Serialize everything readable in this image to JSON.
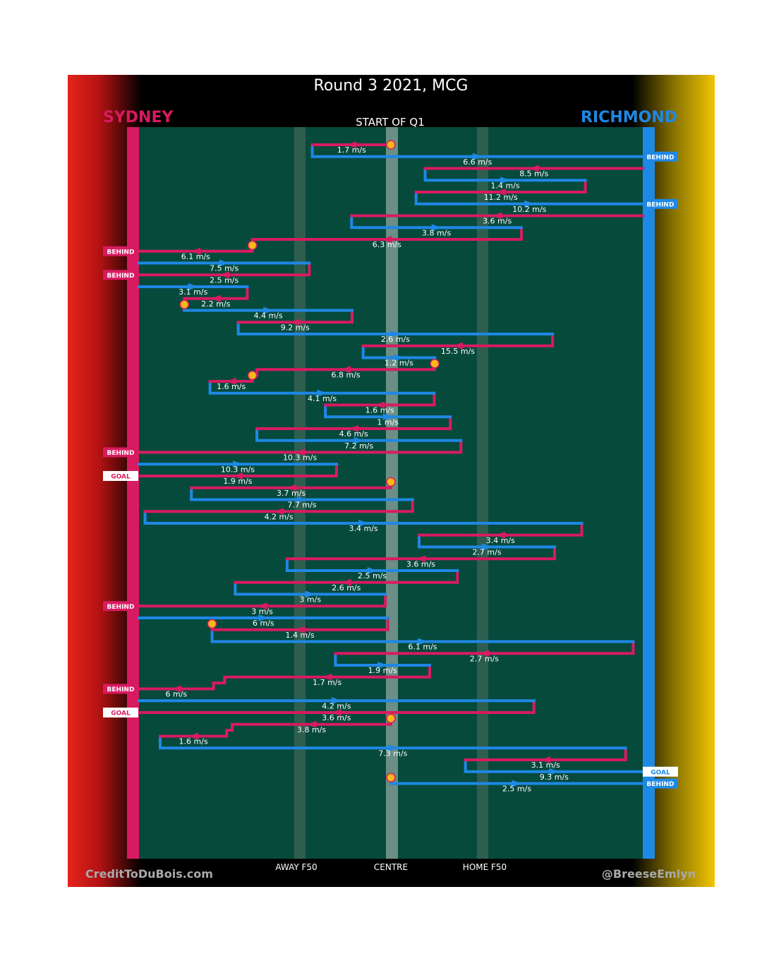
{
  "title": "Round 3 2021, MCG",
  "teams": {
    "home": "SYDNEY",
    "away": "RICHMOND"
  },
  "period_label": "START OF Q1",
  "axis_labels": {
    "away_f50": "AWAY F50",
    "centre": "CENTRE",
    "home_f50": "HOME F50"
  },
  "credits": {
    "left": "CreditToDuBois.com",
    "right": "@BreeseEmlyn"
  },
  "colors": {
    "sydney": "#d81b60",
    "richmond": "#1e88e5",
    "field": "#064a3c",
    "marker": "#f9b816"
  },
  "icons": [
    "ball-up-marker",
    "direction-arrow"
  ],
  "chart_data": {
    "type": "chain-timeline",
    "x_axis": {
      "range": [
        0,
        100
      ],
      "ticks": [
        {
          "value": 0,
          "label": ""
        },
        {
          "value": 31,
          "label": "AWAY F50"
        },
        {
          "value": 50,
          "label": "CENTRE"
        },
        {
          "value": 69,
          "label": "HOME F50"
        },
        {
          "value": 100,
          "label": ""
        }
      ]
    },
    "segments": [
      {
        "team": "SYD",
        "x1": 50,
        "x2": 34.4,
        "speed": "1.7 m/s"
      },
      {
        "team": "RICH",
        "x1": 34.4,
        "x2": 100,
        "speed": "6.6 m/s",
        "end": "BEHIND"
      },
      {
        "team": "SYD",
        "x1": 100,
        "x2": 56.8,
        "speed": "8.5 m/s"
      },
      {
        "team": "RICH",
        "x1": 56.8,
        "x2": 88.6,
        "speed": "1.4 m/s"
      },
      {
        "team": "SYD",
        "x1": 88.6,
        "x2": 55,
        "speed": "11.2 m/s"
      },
      {
        "team": "RICH",
        "x1": 55,
        "x2": 100,
        "speed": "10.2 m/s",
        "end": "BEHIND"
      },
      {
        "team": "SYD",
        "x1": 100,
        "x2": 42.2,
        "speed": "3.6 m/s"
      },
      {
        "team": "RICH",
        "x1": 42.2,
        "x2": 75.9,
        "speed": "3.8 m/s"
      },
      {
        "team": "SYD",
        "x1": 75.9,
        "x2": 22.5,
        "speed": "6.3 m/s"
      },
      {
        "team": "SYD",
        "x1": 22.5,
        "x2": 0,
        "speed": "6.1 m/s",
        "end": "BEHIND"
      },
      {
        "team": "RICH",
        "x1": 0,
        "x2": 33.8,
        "speed": "7.5 m/s"
      },
      {
        "team": "SYD",
        "x1": 33.8,
        "x2": 0,
        "speed": "2.5 m/s",
        "end": "BEHIND"
      },
      {
        "team": "RICH",
        "x1": 0,
        "x2": 21.5,
        "speed": "3.1 m/s"
      },
      {
        "team": "SYD",
        "x1": 21.5,
        "x2": 9,
        "speed": "2.2 m/s"
      },
      {
        "team": "RICH",
        "x1": 9,
        "x2": 42.3,
        "speed": "4.4 m/s"
      },
      {
        "team": "SYD",
        "x1": 42.3,
        "x2": 19.7,
        "speed": "9.2 m/s"
      },
      {
        "team": "RICH",
        "x1": 19.7,
        "x2": 82.1,
        "speed": "2.6 m/s"
      },
      {
        "team": "SYD",
        "x1": 82.1,
        "x2": 44.5,
        "speed": "15.5 m/s"
      },
      {
        "team": "RICH",
        "x1": 44.5,
        "x2": 58.7,
        "speed": "1.2 m/s"
      },
      {
        "team": "SYD",
        "x1": 58.7,
        "x2": 23.4,
        "speed": "6.8 m/s"
      },
      {
        "team": "SYD",
        "x1": 22.5,
        "x2": 14.1,
        "speed": "1.6 m/s"
      },
      {
        "team": "RICH",
        "x1": 14.1,
        "x2": 58.6,
        "speed": "4.1 m/s"
      },
      {
        "team": "SYD",
        "x1": 58.6,
        "x2": 37,
        "speed": "1.6 m/s"
      },
      {
        "team": "RICH",
        "x1": 37,
        "x2": 61.8,
        "speed": "1 m/s"
      },
      {
        "team": "SYD",
        "x1": 61.8,
        "x2": 23.4,
        "speed": "4.6 m/s"
      },
      {
        "team": "RICH",
        "x1": 23.4,
        "x2": 63.9,
        "speed": "7.2 m/s"
      },
      {
        "team": "SYD",
        "x1": 63.9,
        "x2": 0,
        "speed": "10.3 m/s",
        "end": "BEHIND"
      },
      {
        "team": "RICH",
        "x1": 0,
        "x2": 39.2,
        "speed": "10.3 m/s"
      },
      {
        "team": "SYD",
        "x1": 39.2,
        "x2": 0,
        "speed": "1.9 m/s",
        "end": "GOAL"
      },
      {
        "team": "SYD",
        "x1": 50,
        "x2": 10.4,
        "speed": "3.7 m/s"
      },
      {
        "team": "RICH",
        "x1": 10.4,
        "x2": 54.3,
        "speed": "7.7 m/s"
      },
      {
        "team": "SYD",
        "x1": 54.3,
        "x2": 1.2,
        "speed": "4.2 m/s"
      },
      {
        "team": "RICH",
        "x1": 1.2,
        "x2": 87.9,
        "speed": "3.4 m/s"
      },
      {
        "team": "SYD",
        "x1": 87.9,
        "x2": 55.6,
        "speed": "3.4 m/s"
      },
      {
        "team": "RICH",
        "x1": 55.6,
        "x2": 82.5,
        "speed": "2.7 m/s"
      },
      {
        "team": "SYD",
        "x1": 82.5,
        "x2": 29.4,
        "speed": "3.6 m/s"
      },
      {
        "team": "RICH",
        "x1": 29.4,
        "x2": 63.2,
        "speed": "2.5 m/s"
      },
      {
        "team": "SYD",
        "x1": 63.2,
        "x2": 19.1,
        "speed": "2.6 m/s"
      },
      {
        "team": "RICH",
        "x1": 19.1,
        "x2": 48.9,
        "speed": "3 m/s"
      },
      {
        "team": "SYD",
        "x1": 48.9,
        "x2": 0,
        "speed": "3 m/s",
        "end": "BEHIND"
      },
      {
        "team": "RICH",
        "x1": 0,
        "x2": 49.4,
        "speed": "6 m/s"
      },
      {
        "team": "SYD",
        "x1": 49.4,
        "x2": 14.5,
        "speed": "1.4 m/s"
      },
      {
        "team": "RICH",
        "x1": 14.5,
        "x2": 98.1,
        "speed": "6.1 m/s"
      },
      {
        "team": "SYD",
        "x1": 98.1,
        "x2": 39,
        "speed": "2.7 m/s"
      },
      {
        "team": "RICH",
        "x1": 39,
        "x2": 57.7,
        "speed": "1.9 m/s"
      },
      {
        "team": "SYD",
        "x1": 57.7,
        "x2": 17,
        "speed": "1.7 m/s"
      },
      {
        "team": "SYD",
        "x1": 14.8,
        "x2": 0,
        "speed": "6 m/s",
        "end": "BEHIND"
      },
      {
        "team": "RICH",
        "x1": 0,
        "x2": 78.4,
        "speed": "4.2 m/s"
      },
      {
        "team": "SYD",
        "x1": 78.4,
        "x2": 0,
        "speed": "3.6 m/s",
        "end": "GOAL"
      },
      {
        "team": "SYD",
        "x1": 50,
        "x2": 18.5,
        "speed": "3.8 m/s"
      },
      {
        "team": "SYD",
        "x1": 17.4,
        "x2": 4.2,
        "speed": "1.6 m/s"
      },
      {
        "team": "RICH",
        "x1": 4.2,
        "x2": 96.6,
        "speed": "7.3 m/s"
      },
      {
        "team": "SYD",
        "x1": 96.6,
        "x2": 64.8,
        "speed": "3.1 m/s"
      },
      {
        "team": "RICH",
        "x1": 64.8,
        "x2": 100,
        "speed": "9.3 m/s",
        "end": "GOAL"
      },
      {
        "team": "RICH",
        "x1": 50,
        "x2": 100,
        "speed": "2.5 m/s",
        "end": "BEHIND"
      }
    ],
    "ball_ups": [
      {
        "x": 50,
        "after_segment": -1
      },
      {
        "x": 22.5,
        "after_segment": 8
      },
      {
        "x": 9,
        "after_segment": 13
      },
      {
        "x": 58.7,
        "after_segment": 18
      },
      {
        "x": 22.5,
        "after_segment": 19
      },
      {
        "x": 50,
        "after_segment": 28
      },
      {
        "x": 14.5,
        "after_segment": 40
      },
      {
        "x": 50,
        "after_segment": 48
      },
      {
        "x": 50,
        "after_segment": 53
      }
    ]
  }
}
